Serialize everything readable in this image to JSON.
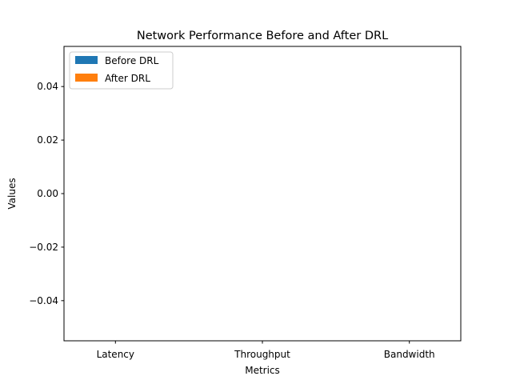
{
  "chart_data": {
    "type": "bar",
    "title": "Network Performance Before and After DRL",
    "xlabel": "Metrics",
    "ylabel": "Values",
    "categories": [
      "Latency",
      "Throughput",
      "Bandwidth"
    ],
    "series": [
      {
        "name": "Before DRL",
        "values": [
          0,
          0,
          0
        ],
        "color": "#1f77b4"
      },
      {
        "name": "After DRL",
        "values": [
          0,
          0,
          0
        ],
        "color": "#ff7f0e"
      }
    ],
    "ylim": [
      -0.055,
      0.055
    ],
    "yticks": [
      -0.04,
      -0.02,
      0.0,
      0.02,
      0.04
    ],
    "ytick_labels": [
      "−0.04",
      "−0.02",
      "0.00",
      "0.02",
      "0.04"
    ],
    "grid": false,
    "legend_position": "top-left"
  }
}
